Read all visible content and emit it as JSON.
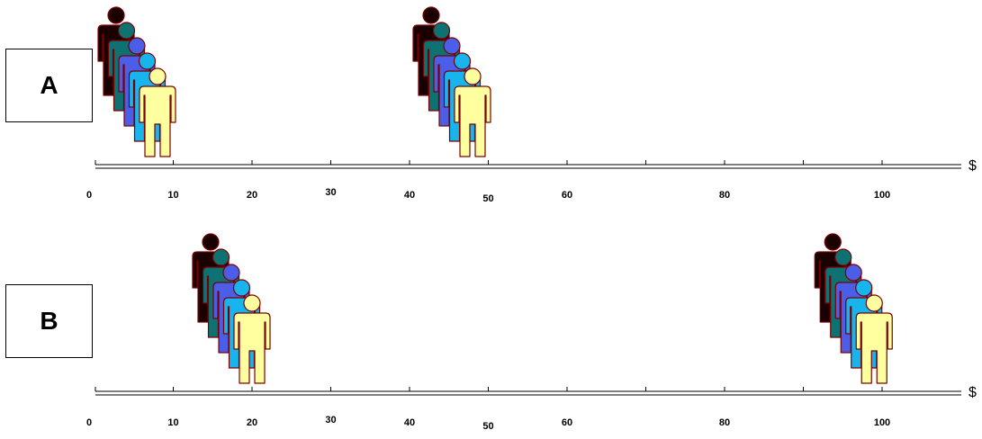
{
  "panels": [
    {
      "label": "A",
      "currency": "$",
      "ticks": [
        {
          "label": "0",
          "value": 0,
          "show_mark": false
        },
        {
          "label": "10",
          "value": 10,
          "show_mark": true
        },
        {
          "label": "20",
          "value": 20,
          "show_mark": true
        },
        {
          "label": "30",
          "value": 30,
          "show_mark": true
        },
        {
          "label": "40",
          "value": 40,
          "show_mark": true
        },
        {
          "label": "50",
          "value": 50,
          "show_mark": true
        },
        {
          "label": "60",
          "value": 60,
          "show_mark": true
        },
        {
          "label": "",
          "value": 70,
          "show_mark": true
        },
        {
          "label": "80",
          "value": 80,
          "show_mark": true
        },
        {
          "label": "",
          "value": 90,
          "show_mark": true
        },
        {
          "label": "100",
          "value": 100,
          "show_mark": true
        }
      ],
      "groups": [
        {
          "value": 8,
          "count": 5
        },
        {
          "value": 48,
          "count": 5
        }
      ]
    },
    {
      "label": "B",
      "currency": "$",
      "ticks": [
        {
          "label": "0",
          "value": 0,
          "show_mark": false
        },
        {
          "label": "10",
          "value": 10,
          "show_mark": true
        },
        {
          "label": "20",
          "value": 20,
          "show_mark": true
        },
        {
          "label": "30",
          "value": 30,
          "show_mark": true
        },
        {
          "label": "40",
          "value": 40,
          "show_mark": true
        },
        {
          "label": "50",
          "value": 50,
          "show_mark": true
        },
        {
          "label": "60",
          "value": 60,
          "show_mark": true
        },
        {
          "label": "",
          "value": 70,
          "show_mark": true
        },
        {
          "label": "80",
          "value": 80,
          "show_mark": true
        },
        {
          "label": "",
          "value": 90,
          "show_mark": true
        },
        {
          "label": "100",
          "value": 100,
          "show_mark": true
        }
      ],
      "groups": [
        {
          "value": 20,
          "count": 5
        },
        {
          "value": 99,
          "count": 5
        }
      ]
    }
  ],
  "colors": {
    "person_fills": [
      "#1a0000",
      "#0e7272",
      "#4a5ee8",
      "#17b4ee",
      "#ffffa0"
    ],
    "person_outline": "#7a0000",
    "axis": "#000000"
  }
}
